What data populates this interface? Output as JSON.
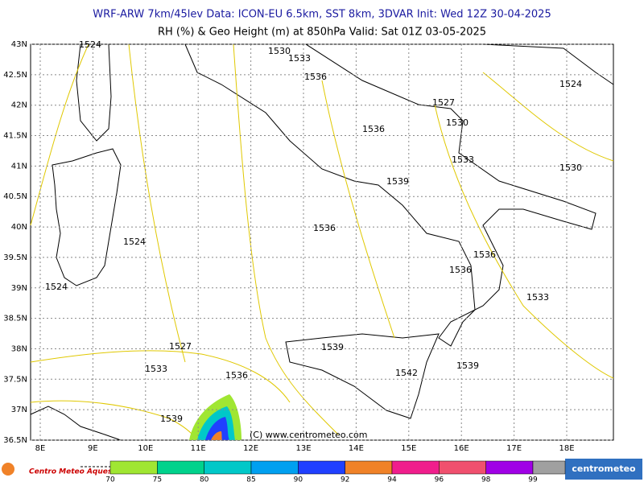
{
  "header": {
    "line1": "WRF-ARW 7km/45lev   Data: ICON-EU 6.5km, SST 8km, 3DVAR   Init: Wed 12Z 30-04-2025",
    "line2": "RH (%) & Geo Height (m) at 850hPa   Valid: Sat 01Z 03-05-2025"
  },
  "map": {
    "lat_labels": [
      "43N",
      "42.5N",
      "42N",
      "41.5N",
      "41N",
      "40.5N",
      "40N",
      "39.5N",
      "39N",
      "38.5N",
      "38N",
      "37.5N",
      "37N",
      "36.5N"
    ],
    "lon_labels": [
      "8E",
      "9E",
      "10E",
      "11E",
      "12E",
      "13E",
      "14E",
      "15E",
      "16E",
      "17E",
      "18E"
    ],
    "contour_labels": [
      "1524",
      "1530",
      "1533",
      "1536",
      "1527",
      "1530",
      "1536",
      "1524",
      "1533",
      "1530",
      "1539",
      "1536",
      "1524",
      "1536",
      "1536",
      "1524",
      "1533",
      "1527",
      "1539",
      "1533",
      "1536",
      "1542",
      "1539",
      "1539"
    ],
    "copyright": "(C) www.centrometeo.com"
  },
  "colorbar": {
    "levels": [
      70,
      75,
      80,
      85,
      90,
      92,
      94,
      96,
      98,
      99
    ],
    "colors": [
      "#a0e632",
      "#00d28c",
      "#00c8c8",
      "#00a0f0",
      "#2040ff",
      "#f08228",
      "#f01e8c",
      "#f0506e",
      "#a000e6",
      "#a0a0a0"
    ]
  },
  "footer": {
    "left_logo": "Centro Meteo Aquese",
    "right_logo": "centrometeo"
  }
}
